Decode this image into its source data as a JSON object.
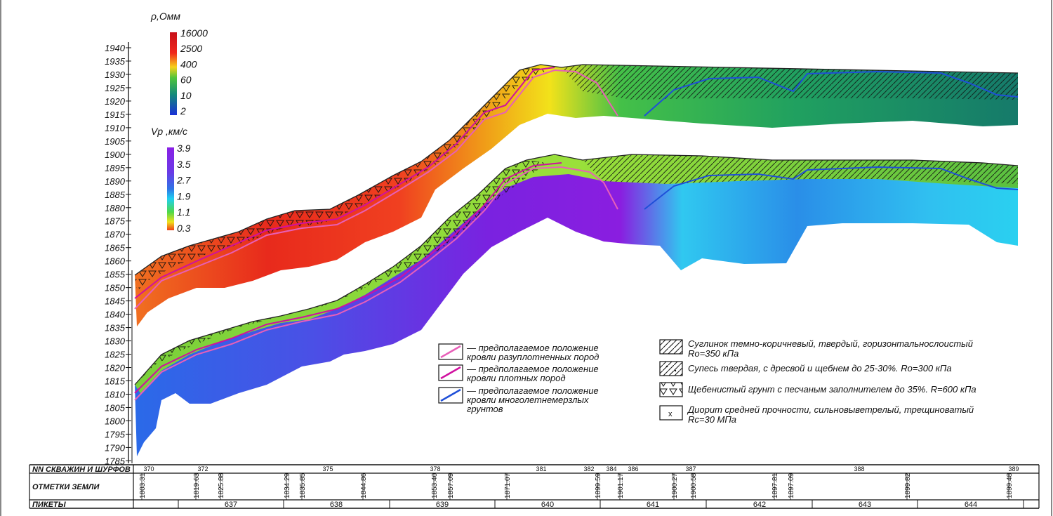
{
  "resistivity_scale": {
    "title": "ρ,Омм",
    "values": [
      "16000",
      "2500",
      "400",
      "60",
      "10",
      "2"
    ]
  },
  "velocity_scale": {
    "title": "Vp ,км/с",
    "values": [
      "3.9",
      "3.5",
      "2.7",
      "1.9",
      "1.1",
      "0.3"
    ]
  },
  "elevation_axis": {
    "ticks": [
      "1940",
      "1935",
      "1930",
      "1925",
      "1920",
      "1915",
      "1910",
      "1905",
      "1900",
      "1895",
      "1890",
      "1885",
      "1880",
      "1875",
      "1870",
      "1865",
      "1860",
      "1855",
      "1850",
      "1845",
      "1840",
      "1835",
      "1830",
      "1825",
      "1820",
      "1815",
      "1810",
      "1805",
      "1800",
      "1795",
      "1790",
      "1785"
    ]
  },
  "lines_legend": [
    {
      "color": "#e85fb8",
      "text1": "— предполагаемое положение",
      "text2": "кровли разуплотненных пород"
    },
    {
      "color": "#d0109f",
      "text1": "— предполагаемое положение",
      "text2": "кровли плотных пород"
    },
    {
      "color": "#1f4fd8",
      "text1": "— предполагаемое положение",
      "text2": "кровли многолетнемерзлых",
      "text3": "грунтов"
    }
  ],
  "soil_legend": [
    {
      "pattern": "hatch",
      "text1": "Суглинок темно-коричневый, твердый, горизонтальнослоистый",
      "text2": "Ro=350 кПа"
    },
    {
      "pattern": "hatch-dots",
      "text1": "Супесь твердая, с дресвой и щебнем до 25-30%. Ro=300 кПа"
    },
    {
      "pattern": "triangles",
      "text1": "Щебенистый грунт с песчаным заполнителем до 35%. R=600 кПа"
    },
    {
      "pattern": "cross",
      "text1": "Диорит средней прочности, сильновыветрелый, трещиноватый",
      "text2": "Rc=30 МПа"
    }
  ],
  "table": {
    "row1_label": "NN СКВАЖИН И ШУРФОВ",
    "row2_label": "ОТМЕТКИ ЗЕМЛИ",
    "row3_label": "ПИКЕТЫ",
    "wells": [
      "370",
      "372",
      "375",
      "378",
      "381",
      "382",
      "384",
      "386",
      "387",
      "388",
      "389"
    ],
    "elevations": [
      "1803.31",
      "1819.63",
      "1825.88",
      "1834.29",
      "1835.85",
      "1844.86",
      "1853.40",
      "1857.09",
      "1871.07",
      "1899.59",
      "1901.17",
      "1900.27",
      "1900.58",
      "1897.81",
      "1897.09",
      "1899.82",
      "1899.48"
    ],
    "pickets": [
      "637",
      "638",
      "639",
      "640",
      "641",
      "642",
      "643",
      "644"
    ]
  },
  "colors": {
    "red": "#e8231a",
    "orange": "#f28a1f",
    "yellow": "#f2e616",
    "green": "#33c24a",
    "teal": "#138a7a",
    "blue": "#1a40d0",
    "violet": "#7a1fe0",
    "cyan": "#1fd8f0"
  }
}
